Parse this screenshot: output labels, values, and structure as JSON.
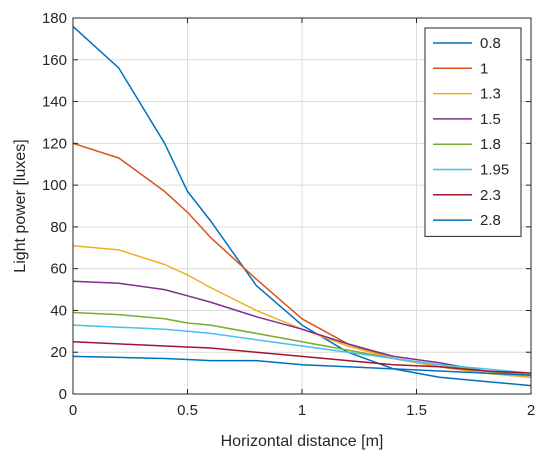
{
  "chart_data": {
    "type": "line",
    "title": "",
    "xlabel": "Horizontal distance [m]",
    "ylabel": "Light power [luxes]",
    "xlim": [
      0,
      2
    ],
    "ylim": [
      0,
      180
    ],
    "xticks": [
      0,
      0.5,
      1,
      1.5,
      2
    ],
    "xtick_labels": [
      "0",
      "0.5",
      "1",
      "1.5",
      "2"
    ],
    "yticks": [
      0,
      20,
      40,
      60,
      80,
      100,
      120,
      140,
      160,
      180
    ],
    "ytick_labels": [
      "0",
      "20",
      "40",
      "60",
      "80",
      "100",
      "120",
      "140",
      "160",
      "180"
    ],
    "grid": true,
    "legend_position": "top-right",
    "series": [
      {
        "name": "0.8",
        "color": "#0072BD",
        "x": [
          0,
          0.2,
          0.4,
          0.5,
          0.6,
          0.8,
          1.0,
          1.2,
          1.4,
          1.6,
          1.8,
          2.0
        ],
        "y": [
          176,
          156,
          120,
          97,
          83,
          52,
          33,
          20,
          12,
          8,
          6,
          4
        ]
      },
      {
        "name": "1",
        "color": "#D95319",
        "x": [
          0,
          0.2,
          0.4,
          0.5,
          0.6,
          0.8,
          1.0,
          1.2,
          1.4,
          1.6,
          1.8,
          2.0
        ],
        "y": [
          120,
          113,
          97,
          87,
          75,
          55,
          36,
          24,
          17,
          13,
          10,
          8
        ]
      },
      {
        "name": "1.3",
        "color": "#EDB120",
        "x": [
          0,
          0.2,
          0.4,
          0.5,
          0.6,
          0.8,
          1.0,
          1.2,
          1.4,
          1.6,
          1.8,
          2.0
        ],
        "y": [
          71,
          69,
          62,
          57,
          51,
          40,
          31,
          23,
          17,
          13,
          10,
          8
        ]
      },
      {
        "name": "1.5",
        "color": "#7E2F8E",
        "x": [
          0,
          0.2,
          0.4,
          0.5,
          0.6,
          0.8,
          1.0,
          1.2,
          1.4,
          1.6,
          1.8,
          2.0
        ],
        "y": [
          54,
          53,
          50,
          47,
          44,
          37,
          31,
          24,
          18,
          15,
          11,
          9
        ]
      },
      {
        "name": "1.8",
        "color": "#77AC30",
        "x": [
          0,
          0.2,
          0.4,
          0.5,
          0.6,
          0.8,
          1.0,
          1.2,
          1.4,
          1.6,
          1.8,
          2.0
        ],
        "y": [
          39,
          38,
          36,
          34,
          33,
          29,
          25,
          21,
          17,
          14,
          11,
          9
        ]
      },
      {
        "name": "1.95",
        "color": "#4DBEEE",
        "x": [
          0,
          0.2,
          0.4,
          0.5,
          0.6,
          0.8,
          1.0,
          1.2,
          1.4,
          1.6,
          1.8,
          2.0
        ],
        "y": [
          33,
          32,
          31,
          30,
          29,
          26,
          23,
          20,
          17,
          14,
          12,
          10
        ]
      },
      {
        "name": "2.3",
        "color": "#A2142F",
        "x": [
          0,
          0.2,
          0.4,
          0.5,
          0.6,
          0.8,
          1.0,
          1.2,
          1.4,
          1.6,
          1.8,
          2.0
        ],
        "y": [
          25,
          24,
          23,
          22.5,
          22,
          20,
          18,
          16,
          14,
          13,
          11,
          10
        ]
      },
      {
        "name": "2.8",
        "color": "#0072BD",
        "x": [
          0,
          0.2,
          0.4,
          0.5,
          0.6,
          0.8,
          1.0,
          1.2,
          1.4,
          1.6,
          1.8,
          2.0
        ],
        "y": [
          18,
          17.5,
          17,
          16.5,
          16,
          16,
          14,
          13,
          12,
          11,
          10,
          9
        ]
      }
    ]
  }
}
